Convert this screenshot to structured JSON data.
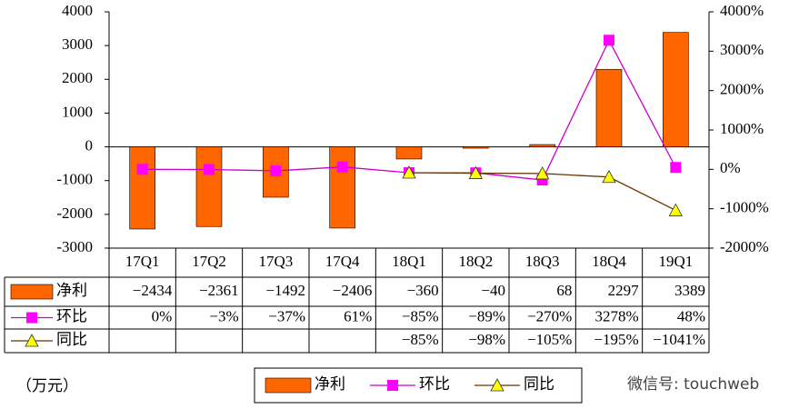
{
  "chart_data": {
    "type": "bar",
    "categories": [
      "17Q1",
      "17Q2",
      "17Q3",
      "17Q4",
      "18Q1",
      "18Q2",
      "18Q3",
      "18Q4",
      "19Q1"
    ],
    "series": [
      {
        "name": "净利",
        "type": "bar",
        "color": "#ff6600",
        "values": [
          -2434,
          -2361,
          -1492,
          -2406,
          -360,
          -40,
          68,
          2297,
          3389
        ],
        "value_labels": [
          "−2434",
          "−2361",
          "−1492",
          "−2406",
          "−360",
          "−40",
          "68",
          "2297",
          "3389"
        ]
      },
      {
        "name": "环比",
        "type": "line",
        "axis": "y2",
        "color": "#cc00cc",
        "marker": "square",
        "marker_color": "#ff00ff",
        "values": [
          0,
          -3,
          -37,
          61,
          -85,
          -89,
          -270,
          3278,
          48
        ],
        "value_labels": [
          "0%",
          "−3%",
          "−37%",
          "61%",
          "−85%",
          "−89%",
          "−270%",
          "3278%",
          "48%"
        ]
      },
      {
        "name": "同比",
        "type": "line",
        "axis": "y2",
        "color": "#663300",
        "marker": "triangle",
        "marker_color": "#ffff00",
        "values": [
          null,
          null,
          null,
          null,
          -85,
          -98,
          -105,
          -195,
          -1041
        ],
        "value_labels": [
          null,
          null,
          null,
          null,
          "−85%",
          "−98%",
          "−105%",
          "−195%",
          "−1041%"
        ]
      }
    ],
    "ylim": [
      -3000,
      4000
    ],
    "yticks": [
      -3000,
      -2000,
      -1000,
      0,
      1000,
      2000,
      3000,
      4000
    ],
    "y2lim": [
      -2000,
      4000
    ],
    "y2ticks": [
      {
        "value": -2000,
        "label": "-2000%"
      },
      {
        "value": -1000,
        "label": "-1000%"
      },
      {
        "value": 0,
        "label": "0%"
      },
      {
        "value": 1000,
        "label": "1000%"
      },
      {
        "value": 2000,
        "label": "2000%"
      },
      {
        "value": 3000,
        "label": "3000%"
      },
      {
        "value": 4000,
        "label": "4000%"
      }
    ],
    "unit_label": "（万元）",
    "watermark": "微信号: touchweb"
  }
}
